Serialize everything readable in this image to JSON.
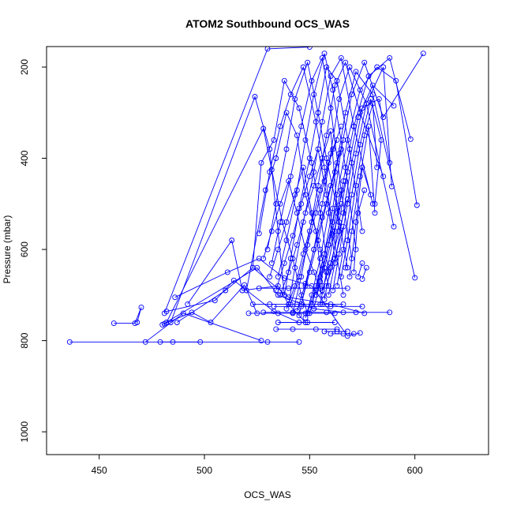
{
  "chart_data": {
    "type": "line",
    "title": "ATOM2 Southbound OCS_WAS",
    "xlabel": "OCS_WAS",
    "ylabel": "Pressure (mbar)",
    "xlim": [
      425,
      635
    ],
    "ylim": [
      1050,
      155
    ],
    "y_reversed": true,
    "x_ticks": [
      450,
      500,
      550,
      600
    ],
    "y_ticks": [
      200,
      400,
      600,
      800,
      1000
    ],
    "x_tick_labels": [
      "450",
      "500",
      "550",
      "600"
    ],
    "y_tick_labels": [
      "200",
      "400",
      "600",
      "800",
      "1000"
    ],
    "grid": false,
    "legend": "none",
    "series_color": "#0000ff",
    "marker": "open-circle",
    "series": [
      {
        "x": [
          436,
          530,
          545
        ],
        "y": [
          803,
          803,
          803
        ]
      },
      {
        "x": [
          479,
          485,
          498
        ],
        "y": [
          803,
          803,
          803
        ]
      },
      {
        "x": [
          472,
          490,
          527
        ],
        "y": [
          803,
          740,
          800
        ]
      },
      {
        "x": [
          457,
          467,
          470,
          468
        ],
        "y": [
          762,
          762,
          727,
          760
        ]
      },
      {
        "x": [
          481,
          494,
          503,
          519,
          525
        ],
        "y": [
          763,
          738,
          760,
          678,
          740
        ]
      },
      {
        "x": [
          482,
          505,
          514,
          533,
          545
        ],
        "y": [
          736,
          712,
          668,
          736,
          760
        ]
      },
      {
        "x": [
          480,
          525,
          535,
          552,
          566,
          588
        ],
        "y": [
          765,
          640,
          700,
          730,
          738,
          738
        ]
      },
      {
        "x": [
          487,
          510,
          523,
          540,
          560,
          576
        ],
        "y": [
          760,
          690,
          640,
          705,
          720,
          740
        ]
      },
      {
        "x": [
          486,
          511,
          526,
          538,
          551,
          568,
          574
        ],
        "y": [
          705,
          650,
          620,
          663,
          680,
          790,
          783
        ]
      },
      {
        "x": [
          492,
          513,
          518,
          535,
          540,
          548
        ],
        "y": [
          720,
          580,
          690,
          680,
          720,
          760
        ]
      },
      {
        "x": [
          481,
          530,
          550
        ],
        "y": [
          740,
          160,
          156
        ]
      },
      {
        "x": [
          484,
          524,
          531,
          535,
          538
        ],
        "y": [
          760,
          265,
          380,
          560,
          700
        ]
      },
      {
        "x": [
          482,
          528,
          532,
          537,
          542,
          546,
          549
        ],
        "y": [
          760,
          335,
          425,
          540,
          620,
          700,
          740
        ]
      },
      {
        "x": [
          520,
          529,
          534,
          539,
          544,
          548,
          553,
          556
        ],
        "y": [
          690,
          470,
          400,
          300,
          350,
          480,
          560,
          680
        ]
      },
      {
        "x": [
          523,
          527,
          533,
          538,
          545,
          551,
          555,
          559
        ],
        "y": [
          640,
          410,
          360,
          230,
          290,
          410,
          520,
          650
        ]
      },
      {
        "x": [
          526,
          531,
          536,
          541,
          547,
          553,
          557,
          561,
          566
        ],
        "y": [
          565,
          430,
          330,
          260,
          200,
          320,
          420,
          560,
          700
        ]
      },
      {
        "x": [
          530,
          534,
          539,
          543,
          549,
          554,
          558,
          563,
          568
        ],
        "y": [
          600,
          500,
          380,
          270,
          190,
          300,
          400,
          510,
          640
        ]
      },
      {
        "x": [
          532,
          536,
          541,
          546,
          551,
          556,
          560,
          565,
          570
        ],
        "y": [
          630,
          540,
          440,
          330,
          230,
          180,
          290,
          470,
          620
        ]
      },
      {
        "x": [
          535,
          539,
          544,
          548,
          552,
          557,
          561,
          567,
          572
        ],
        "y": [
          660,
          580,
          470,
          360,
          260,
          170,
          250,
          420,
          600
        ]
      },
      {
        "x": [
          538,
          541,
          545,
          550,
          554,
          558,
          563,
          569,
          575
        ],
        "y": [
          700,
          620,
          510,
          400,
          300,
          200,
          230,
          380,
          560
        ]
      },
      {
        "x": [
          540,
          543,
          547,
          552,
          556,
          560,
          565,
          571,
          580
        ],
        "y": [
          720,
          640,
          540,
          430,
          320,
          220,
          180,
          330,
          500
        ]
      },
      {
        "x": [
          542,
          546,
          550,
          554,
          558,
          562,
          567,
          574,
          585
        ],
        "y": [
          740,
          660,
          560,
          460,
          350,
          240,
          190,
          300,
          440
        ]
      },
      {
        "x": [
          545,
          548,
          552,
          556,
          560,
          564,
          569,
          577,
          590
        ],
        "y": [
          745,
          680,
          600,
          500,
          390,
          270,
          200,
          280,
          550
        ]
      },
      {
        "x": [
          548,
          551,
          555,
          559,
          563,
          567,
          572,
          580,
          600
        ],
        "y": [
          750,
          700,
          620,
          520,
          410,
          300,
          210,
          260,
          662
        ]
      },
      {
        "x": [
          550,
          553,
          557,
          561,
          565,
          570,
          576,
          585,
          604
        ],
        "y": [
          740,
          690,
          610,
          510,
          380,
          260,
          190,
          310,
          170
        ]
      },
      {
        "x": [
          552,
          555,
          559,
          563,
          568,
          574,
          582,
          591,
          601
        ],
        "y": [
          730,
          670,
          590,
          480,
          360,
          250,
          200,
          230,
          503
        ]
      },
      {
        "x": [
          555,
          558,
          562,
          566,
          571,
          578,
          588,
          598
        ],
        "y": [
          720,
          650,
          560,
          450,
          330,
          220,
          180,
          358
        ]
      },
      {
        "x": [
          557,
          560,
          564,
          568,
          573,
          580,
          590
        ],
        "y": [
          710,
          640,
          540,
          430,
          310,
          240,
          285
        ]
      },
      {
        "x": [
          559,
          562,
          566,
          570,
          575,
          583,
          588
        ],
        "y": [
          700,
          630,
          520,
          410,
          290,
          270,
          410
        ]
      },
      {
        "x": [
          561,
          564,
          568,
          572,
          577,
          585,
          589
        ],
        "y": [
          690,
          610,
          500,
          390,
          280,
          200,
          462
        ]
      },
      {
        "x": [
          563,
          566,
          570,
          574,
          579,
          584,
          581
        ],
        "y": [
          680,
          600,
          480,
          370,
          270,
          360,
          500
        ]
      },
      {
        "x": [
          565,
          568,
          572,
          576,
          580,
          582
        ],
        "y": [
          660,
          580,
          460,
          350,
          280,
          420
        ]
      },
      {
        "x": [
          567,
          570,
          574,
          578,
          581
        ],
        "y": [
          640,
          560,
          440,
          330,
          520
        ]
      },
      {
        "x": [
          569,
          572,
          575,
          579
        ],
        "y": [
          660,
          540,
          420,
          480
        ]
      },
      {
        "x": [
          571,
          573,
          576
        ],
        "y": [
          650,
          520,
          470
        ]
      },
      {
        "x": [
          573,
          575
        ],
        "y": [
          660,
          630
        ]
      },
      {
        "x": [
          575,
          577
        ],
        "y": [
          665,
          640
        ]
      },
      {
        "x": [
          528,
          532,
          536,
          540,
          544,
          548,
          552,
          556
        ],
        "y": [
          620,
          560,
          500,
          450,
          520,
          600,
          650,
          700
        ]
      },
      {
        "x": [
          531,
          535,
          539,
          543,
          547,
          551,
          555,
          559
        ],
        "y": [
          660,
          600,
          540,
          480,
          420,
          520,
          600,
          680
        ]
      },
      {
        "x": [
          534,
          538,
          542,
          546,
          550,
          554,
          558,
          562
        ],
        "y": [
          690,
          630,
          570,
          500,
          440,
          380,
          480,
          620
        ]
      },
      {
        "x": [
          536,
          540,
          544,
          548,
          552,
          556,
          560,
          564
        ],
        "y": [
          700,
          650,
          590,
          520,
          460,
          400,
          340,
          560
        ]
      },
      {
        "x": [
          539,
          543,
          547,
          551,
          555,
          559,
          563
        ],
        "y": [
          730,
          680,
          610,
          540,
          470,
          410,
          360
        ]
      },
      {
        "x": [
          541,
          545,
          549,
          553,
          557,
          561,
          565
        ],
        "y": [
          720,
          660,
          590,
          520,
          450,
          380,
          330
        ]
      },
      {
        "x": [
          544,
          548,
          552,
          556,
          560,
          564
        ],
        "y": [
          735,
          675,
          600,
          530,
          460,
          390
        ]
      },
      {
        "x": [
          546,
          550,
          554,
          558,
          562,
          566
        ],
        "y": [
          720,
          650,
          580,
          500,
          430,
          360
        ]
      },
      {
        "x": [
          549,
          553,
          557,
          561,
          565
        ],
        "y": [
          740,
          680,
          610,
          540,
          470
        ]
      },
      {
        "x": [
          551,
          555,
          559,
          563,
          567
        ],
        "y": [
          720,
          660,
          590,
          520,
          450
        ]
      },
      {
        "x": [
          553,
          557,
          561,
          565
        ],
        "y": [
          700,
          640,
          570,
          500
        ]
      },
      {
        "x": [
          556,
          560,
          564,
          568
        ],
        "y": [
          690,
          630,
          560,
          490
        ]
      },
      {
        "x": [
          558,
          562,
          566
        ],
        "y": [
          680,
          620,
          550
        ]
      },
      {
        "x": [
          526,
          540,
          555,
          568
        ],
        "y": [
          685,
          685,
          685,
          685
        ]
      },
      {
        "x": [
          521,
          535,
          548,
          562
        ],
        "y": [
          740,
          740,
          740,
          740
        ]
      },
      {
        "x": [
          528,
          542,
          558,
          572
        ],
        "y": [
          738,
          738,
          738,
          738
        ]
      },
      {
        "x": [
          533,
          546,
          560,
          575
        ],
        "y": [
          725,
          725,
          725,
          725
        ]
      },
      {
        "x": [
          523,
          531,
          544,
          556,
          566
        ],
        "y": [
          720,
          720,
          720,
          720,
          720
        ]
      },
      {
        "x": [
          535,
          549,
          562
        ],
        "y": [
          760,
          760,
          760
        ]
      },
      {
        "x": [
          557,
          563,
          568
        ],
        "y": [
          780,
          780,
          780
        ]
      },
      {
        "x": [
          560,
          566,
          571
        ],
        "y": [
          785,
          785,
          785
        ]
      },
      {
        "x": [
          534,
          542,
          553,
          563
        ],
        "y": [
          775,
          775,
          775,
          775
        ]
      }
    ]
  }
}
